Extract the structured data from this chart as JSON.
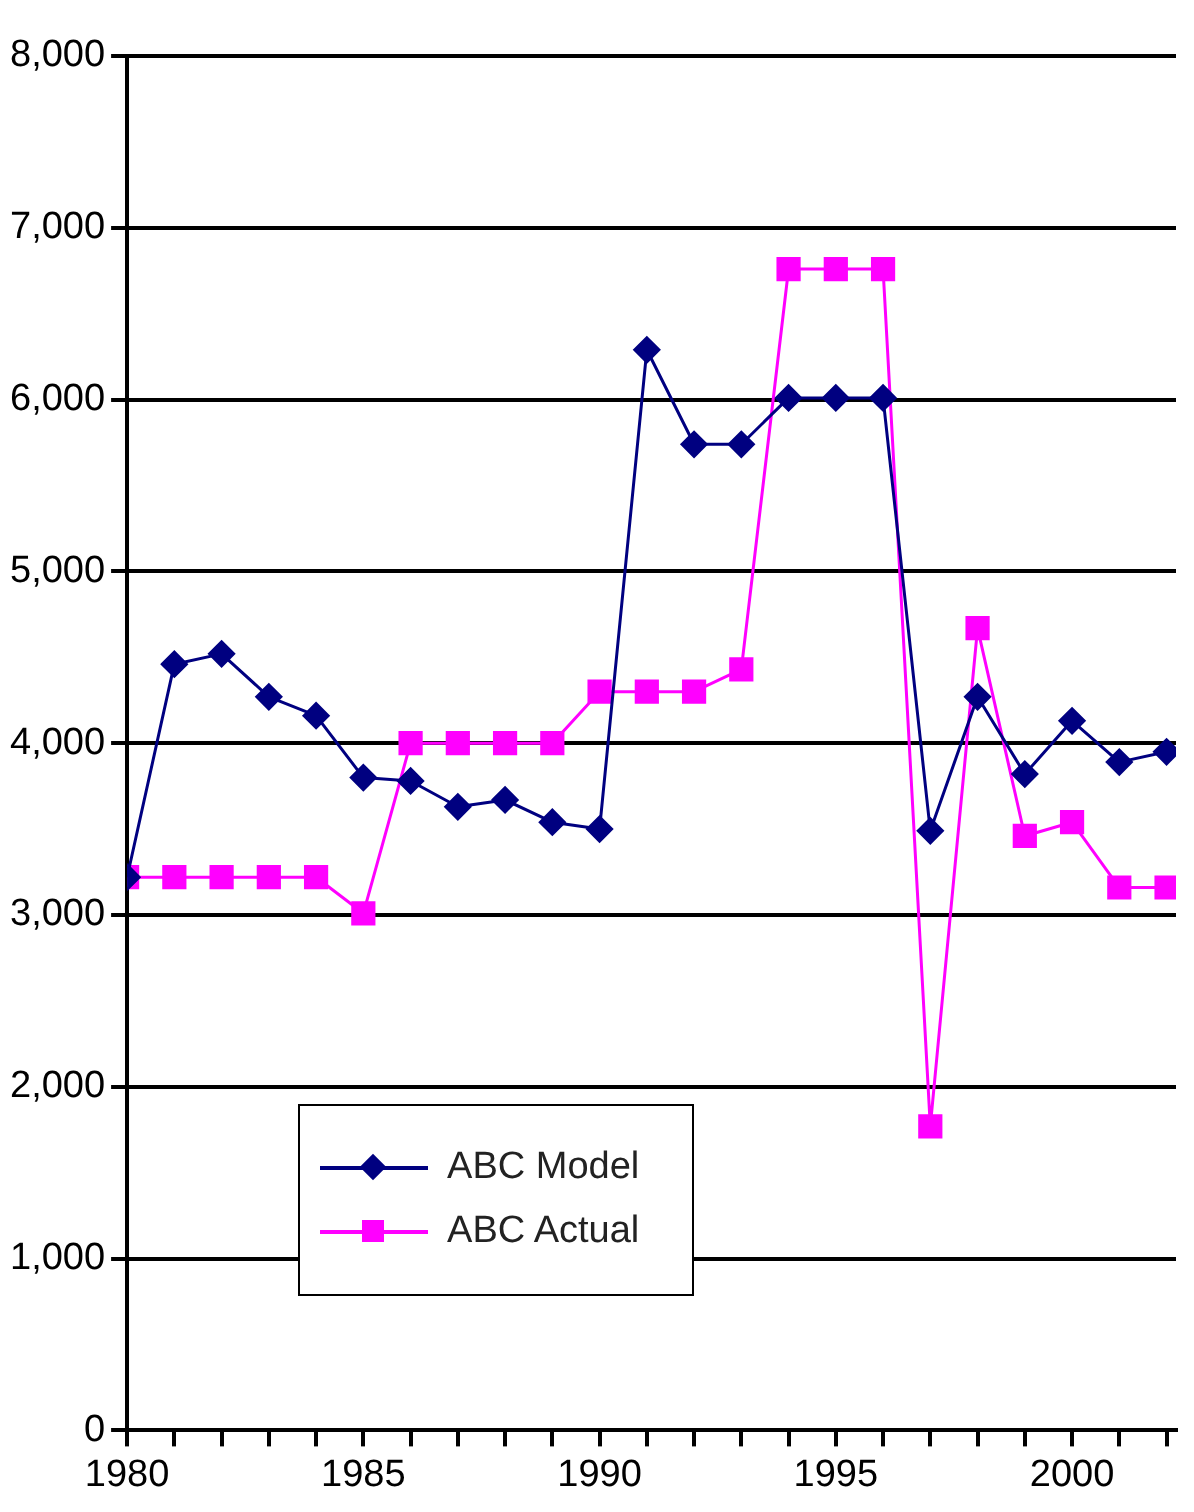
{
  "chart_data": {
    "type": "line",
    "x": [
      1980,
      1981,
      1982,
      1983,
      1984,
      1985,
      1986,
      1987,
      1988,
      1989,
      1990,
      1991,
      1992,
      1993,
      1994,
      1995,
      1996,
      1997,
      1998,
      1999,
      2000,
      2001,
      2002
    ],
    "series": [
      {
        "name": "ABC Model",
        "color": "#000080",
        "marker": "diamond",
        "values": [
          3220,
          4460,
          4520,
          4270,
          4160,
          3800,
          3780,
          3630,
          3670,
          3540,
          3500,
          6290,
          5740,
          5740,
          6010,
          6010,
          6010,
          3490,
          4270,
          3820,
          4130,
          3890,
          3950
        ]
      },
      {
        "name": "ABC Actual",
        "color": "#ff00ff",
        "marker": "square",
        "values": [
          3220,
          3220,
          3220,
          3220,
          3220,
          3010,
          4000,
          4000,
          4000,
          4000,
          4300,
          4300,
          4300,
          4430,
          6760,
          6760,
          6760,
          1770,
          4670,
          3460,
          3540,
          3160,
          3160
        ]
      }
    ],
    "xlim": [
      1980,
      2002.2
    ],
    "xticks": [
      1980,
      {
        "value": 1981,
        "label": null
      },
      {
        "value": 1982,
        "label": null
      },
      {
        "value": 1983,
        "label": null
      },
      {
        "value": 1984,
        "label": null
      },
      1985,
      {
        "value": 1986,
        "label": null
      },
      {
        "value": 1987,
        "label": null
      },
      {
        "value": 1988,
        "label": null
      },
      {
        "value": 1989,
        "label": null
      },
      1990,
      {
        "value": 1991,
        "label": null
      },
      {
        "value": 1992,
        "label": null
      },
      {
        "value": 1993,
        "label": null
      },
      {
        "value": 1994,
        "label": null
      },
      1995,
      {
        "value": 1996,
        "label": null
      },
      {
        "value": 1997,
        "label": null
      },
      {
        "value": 1998,
        "label": null
      },
      {
        "value": 1999,
        "label": null
      },
      2000,
      {
        "value": 2001,
        "label": null
      },
      {
        "value": 2002,
        "label": null
      }
    ],
    "ylim": [
      0,
      8000
    ],
    "yticks": [
      {
        "value": 0,
        "label": "0"
      },
      {
        "value": 1000,
        "label": "1,000"
      },
      {
        "value": 2000,
        "label": "2,000"
      },
      {
        "value": 3000,
        "label": "3,000"
      },
      {
        "value": 4000,
        "label": "4,000"
      },
      {
        "value": 5000,
        "label": "5,000"
      },
      {
        "value": 6000,
        "label": "6,000"
      },
      {
        "value": 7000,
        "label": "7,000"
      },
      {
        "value": 8000,
        "label": "8,000"
      }
    ],
    "grid": "y",
    "legend": "bottom left"
  }
}
